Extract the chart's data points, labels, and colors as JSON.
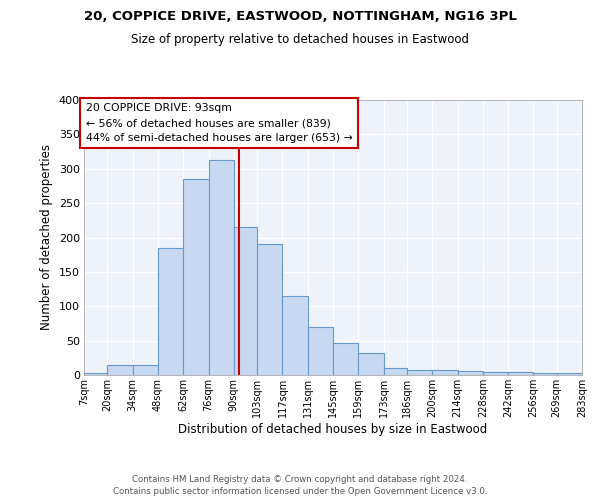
{
  "title1": "20, COPPICE DRIVE, EASTWOOD, NOTTINGHAM, NG16 3PL",
  "title2": "Size of property relative to detached houses in Eastwood",
  "xlabel": "Distribution of detached houses by size in Eastwood",
  "ylabel": "Number of detached properties",
  "bar_color": "#c8d8f0",
  "bar_edge_color": "#6699cc",
  "background_color": "#edf2fb",
  "grid_color": "#ffffff",
  "annotation_line_color": "#cc0000",
  "annotation_text": "20 COPPICE DRIVE: 93sqm\n← 56% of detached houses are smaller (839)\n44% of semi-detached houses are larger (653) →",
  "property_size": 93,
  "bin_edges": [
    7,
    20,
    34,
    48,
    62,
    76,
    90,
    103,
    117,
    131,
    145,
    159,
    173,
    186,
    200,
    214,
    228,
    242,
    256,
    269,
    283
  ],
  "bar_heights": [
    3,
    15,
    15,
    185,
    285,
    313,
    215,
    190,
    115,
    70,
    47,
    32,
    10,
    8,
    7,
    6,
    5,
    5,
    3,
    3
  ],
  "tick_labels": [
    "7sqm",
    "20sqm",
    "34sqm",
    "48sqm",
    "62sqm",
    "76sqm",
    "90sqm",
    "103sqm",
    "117sqm",
    "131sqm",
    "145sqm",
    "159sqm",
    "173sqm",
    "186sqm",
    "200sqm",
    "214sqm",
    "228sqm",
    "242sqm",
    "256sqm",
    "269sqm",
    "283sqm"
  ],
  "ylim": [
    0,
    400
  ],
  "yticks": [
    0,
    50,
    100,
    150,
    200,
    250,
    300,
    350,
    400
  ],
  "footer1": "Contains HM Land Registry data © Crown copyright and database right 2024.",
  "footer2": "Contains public sector information licensed under the Open Government Licence v3.0."
}
